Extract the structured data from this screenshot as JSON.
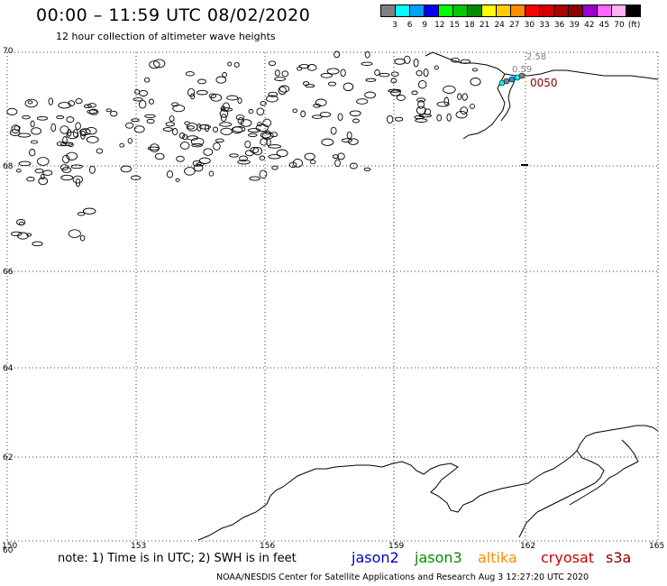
{
  "header": {
    "title": "00:00 – 11:59 UTC 08/02/2020",
    "subtitle": "12 hour collection of altimeter wave heights"
  },
  "legend": {
    "colors": [
      "#808080",
      "#00ffff",
      "#00a0ff",
      "#0000ff",
      "#00ff00",
      "#00c800",
      "#008c00",
      "#ffff00",
      "#ffcc00",
      "#ff8c00",
      "#ff0000",
      "#d40000",
      "#aa0000",
      "#8b0000",
      "#9900cc",
      "#ff66ff",
      "#ffb0f0",
      "#000000"
    ],
    "ticks": [
      "3",
      "6",
      "9",
      "12",
      "15",
      "18",
      "21",
      "24",
      "27",
      "30",
      "33",
      "36",
      "39",
      "42",
      "45",
      "70"
    ],
    "unit": "(ft)"
  },
  "map": {
    "lat_labels": [
      "70",
      "68",
      "66",
      "64",
      "62",
      "60"
    ],
    "lon_labels": [
      "150",
      "153",
      "156",
      "159",
      "162",
      "165"
    ],
    "swh_values": [
      {
        "text": "2.58",
        "color": "#808080"
      },
      {
        "text": "0.59",
        "color": "#808080"
      },
      {
        "text": "0050",
        "color": "#8b0000"
      }
    ]
  },
  "footer": {
    "note": "note: 1) Time is in UTC; 2) SWH is in feet",
    "satellites": [
      {
        "name": "jason2",
        "color": "#0000cc"
      },
      {
        "name": "jason3",
        "color": "#008c00"
      },
      {
        "name": "altika",
        "color": "#ff8c00"
      },
      {
        "name": "cryosat",
        "color": "#cc0000"
      },
      {
        "name": "s3a",
        "color": "#8b0000"
      }
    ],
    "credit": "NOAA/NESDIS Center for Satellite Applications and Research    Aug  3 12:27:20 UTC 2020"
  }
}
